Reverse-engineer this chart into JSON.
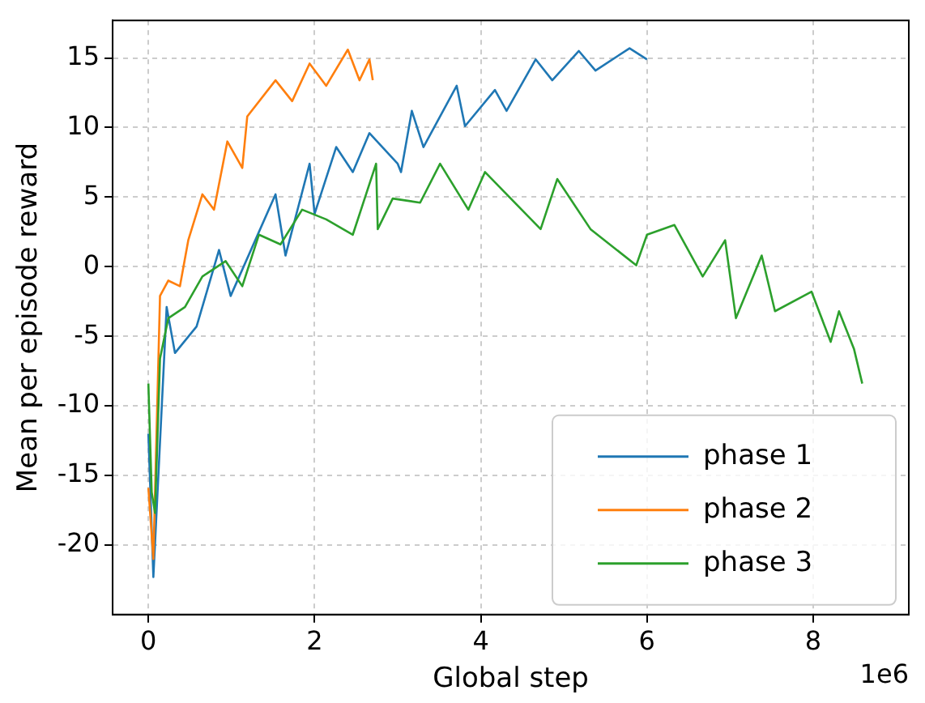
{
  "chart_data": {
    "type": "line",
    "xlabel": "Global step",
    "ylabel": "Mean per episode reward",
    "annotations": [
      "1e6"
    ],
    "xlim": [
      -0.43,
      9.15
    ],
    "xticks": [
      0,
      2,
      4,
      6,
      8
    ],
    "ylim": [
      -25,
      17.7
    ],
    "yticks": [
      -20,
      -15,
      -10,
      -5,
      0,
      5,
      10,
      15
    ],
    "grid": true,
    "legend": "bottom right",
    "line_style": "solid",
    "marker": "none",
    "series": [
      {
        "name": "phase 1",
        "color": "#1f77b4",
        "x": [
          0,
          0.06,
          0.22,
          0.32,
          0.58,
          0.85,
          0.99,
          1.53,
          1.65,
          1.94,
          2.0,
          2.26,
          2.46,
          2.66,
          3.0,
          3.04,
          3.17,
          3.31,
          3.71,
          3.81,
          4.17,
          4.31,
          4.66,
          4.86,
          5.18,
          5.38,
          5.79,
          6.0
        ],
        "values": [
          -12,
          -22.3,
          -2.9,
          -6.2,
          -4.3,
          1.2,
          -2.1,
          5.2,
          0.8,
          7.4,
          3.8,
          8.6,
          6.8,
          9.6,
          7.4,
          6.8,
          11.2,
          8.6,
          13,
          10.1,
          12.7,
          11.2,
          14.9,
          13.4,
          15.5,
          14.1,
          15.7,
          14.9
        ]
      },
      {
        "name": "phase 2",
        "color": "#ff7f0e",
        "x": [
          0,
          0.06,
          0.14,
          0.24,
          0.38,
          0.48,
          0.65,
          0.79,
          0.95,
          1.13,
          1.19,
          1.53,
          1.73,
          1.94,
          2.14,
          2.4,
          2.54,
          2.66,
          2.7
        ],
        "values": [
          -15.9,
          -21,
          -2.1,
          -1,
          -1.4,
          1.9,
          5.2,
          4.1,
          9,
          7.1,
          10.8,
          13.4,
          11.9,
          14.6,
          13,
          15.6,
          13.4,
          14.9,
          13.4
        ]
      },
      {
        "name": "phase 3",
        "color": "#2ca02c",
        "x": [
          0,
          0.04,
          0.08,
          0.14,
          0.24,
          0.44,
          0.65,
          0.93,
          1.13,
          1.33,
          1.59,
          1.85,
          2.14,
          2.46,
          2.74,
          2.76,
          2.94,
          3.27,
          3.51,
          3.85,
          4.05,
          4.72,
          4.92,
          5.32,
          5.87,
          6.0,
          6.33,
          6.67,
          6.94,
          7.07,
          7.38,
          7.54,
          7.98,
          8.21,
          8.31,
          8.49,
          8.59
        ],
        "values": [
          -8.4,
          -16.2,
          -17.7,
          -6.6,
          -3.7,
          -2.9,
          -0.7,
          0.4,
          -1.4,
          2.3,
          1.6,
          4.1,
          3.4,
          2.3,
          7.4,
          2.7,
          4.9,
          4.6,
          7.4,
          4.1,
          6.8,
          2.7,
          6.3,
          2.7,
          0.1,
          2.3,
          3,
          -0.7,
          1.9,
          -3.7,
          0.8,
          -3.2,
          -1.8,
          -5.4,
          -3.2,
          -5.9,
          -8.4
        ]
      }
    ]
  }
}
